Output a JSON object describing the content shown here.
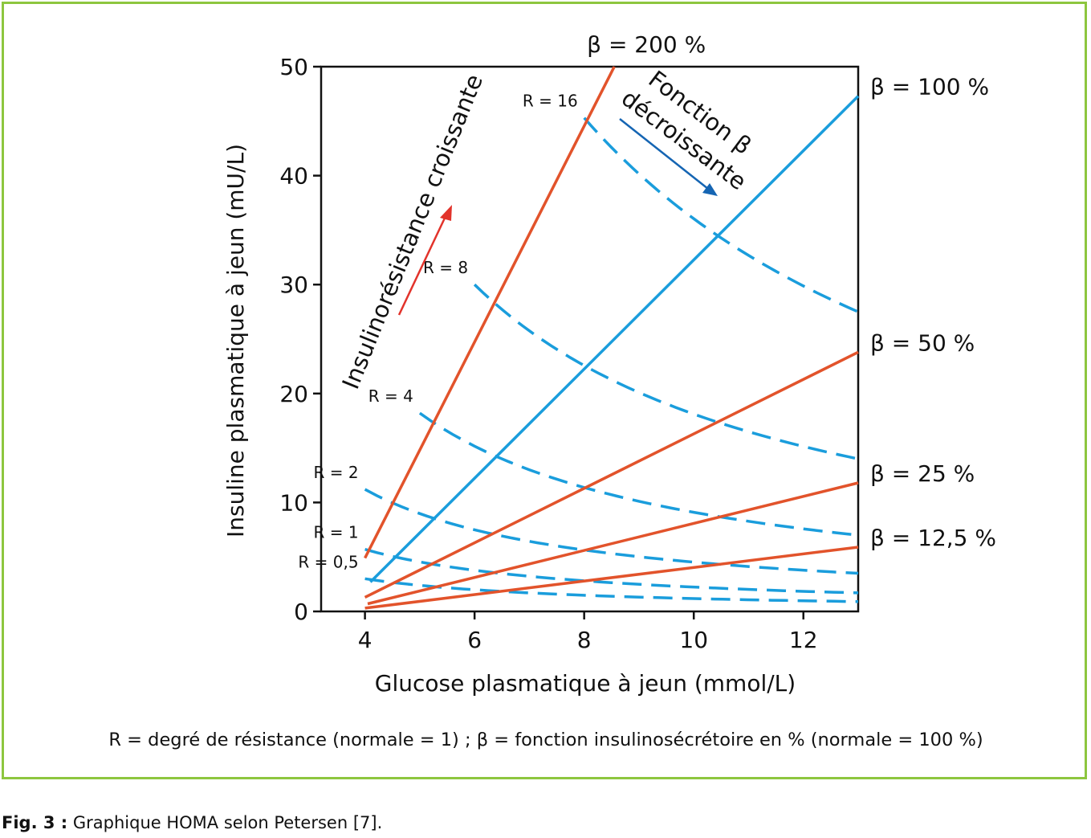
{
  "chart_data": {
    "type": "line",
    "xlabel": "Glucose plasmatique à jeun (mmol/L)",
    "ylabel": "Insuline plasmatique à jeun (mU/L)",
    "xlim": [
      3.2,
      13
    ],
    "ylim": [
      0,
      50
    ],
    "x_ticks": [
      4,
      6,
      8,
      10,
      12
    ],
    "y_ticks": [
      0,
      10,
      20,
      30,
      40,
      50
    ],
    "beta_series": [
      {
        "name": "β = 200 %",
        "color": "#e2532b",
        "points": [
          [
            4.0,
            4.9
          ],
          [
            8.55,
            50
          ]
        ]
      },
      {
        "name": "β = 100 %",
        "color": "#1a9ddc",
        "points": [
          [
            4.1,
            2.7
          ],
          [
            13.0,
            47.3
          ]
        ]
      },
      {
        "name": "β = 50 %",
        "color": "#e2532b",
        "points": [
          [
            4.0,
            1.3
          ],
          [
            13.0,
            23.8
          ]
        ]
      },
      {
        "name": "β = 25 %",
        "color": "#e2532b",
        "points": [
          [
            4.05,
            0.7
          ],
          [
            13.0,
            11.8
          ]
        ]
      },
      {
        "name": "β = 12,5 %",
        "color": "#e2532b",
        "points": [
          [
            4.0,
            0.3
          ],
          [
            13.0,
            5.9
          ]
        ]
      }
    ],
    "resistance_series": [
      {
        "name": "R = 16",
        "color": "#1a9ddc",
        "start": [
          8.0,
          45.3
        ],
        "end": [
          13.0,
          27.5
        ]
      },
      {
        "name": "R = 8",
        "color": "#1a9ddc",
        "start": [
          6.0,
          30.0
        ],
        "end": [
          13.0,
          14.0
        ]
      },
      {
        "name": "R = 4",
        "color": "#1a9ddc",
        "start": [
          5.0,
          18.2
        ],
        "end": [
          13.0,
          7.0
        ]
      },
      {
        "name": "R = 2",
        "color": "#1a9ddc",
        "start": [
          4.0,
          11.2
        ],
        "end": [
          13.0,
          3.5
        ]
      },
      {
        "name": "R = 1",
        "color": "#1a9ddc",
        "start": [
          4.0,
          5.7
        ],
        "end": [
          13.0,
          1.7
        ]
      },
      {
        "name": "R = 0,5",
        "color": "#1a9ddc",
        "start": [
          4.0,
          3.0
        ],
        "end": [
          13.0,
          0.9
        ]
      }
    ],
    "annotations": {
      "insulin_resistance": "Insulinorésistance croissante",
      "beta_line1": "Fonction β",
      "beta_line2": "décroissante",
      "arrow_red_color": "#e2332b",
      "arrow_blue_color": "#1565b3"
    },
    "legend_note": "R = degré de résistance (normale = 1) ; β = fonction insulinosécrétoire en % (normale = 100 %)"
  },
  "caption": {
    "label": "Fig. 3 :",
    "text": " Graphique HOMA selon Petersen [7]."
  }
}
